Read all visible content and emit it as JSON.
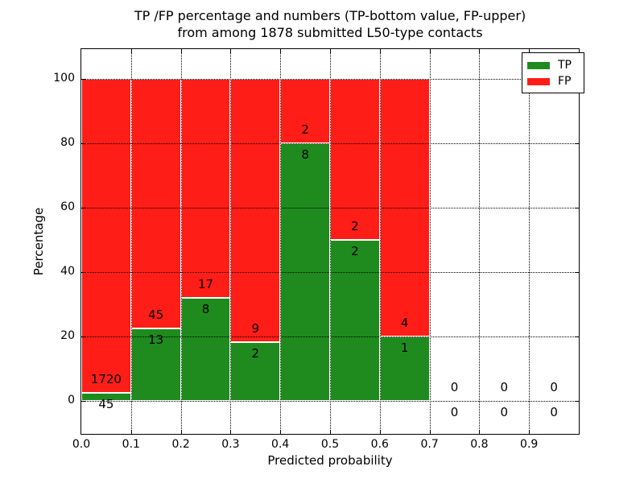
{
  "figure": {
    "title_line1": "TP /FP percentage and numbers (TP-bottom value, FP-upper)",
    "title_line2": "from among 1878 submitted L50-type contacts"
  },
  "chart_data": {
    "type": "bar",
    "stacked": true,
    "normalized_to_percent": true,
    "title": "TP /FP percentage and numbers (TP-bottom value, FP-upper) from among 1878 submitted L50-type contacts",
    "xlabel": "Predicted probability",
    "ylabel": "Percentage",
    "xlim": [
      0.0,
      1.0
    ],
    "ylim": [
      -10,
      110
    ],
    "bin_width": 0.1,
    "x_tick_labels": [
      "0.0",
      "0.1",
      "0.2",
      "0.3",
      "0.4",
      "0.5",
      "0.6",
      "0.7",
      "0.8",
      "0.9"
    ],
    "y_tick_values": [
      0,
      20,
      40,
      60,
      80,
      100
    ],
    "grid": true,
    "grid_style": "dotted",
    "legend_position": "upper right",
    "categories": [
      "0.0-0.1",
      "0.1-0.2",
      "0.2-0.3",
      "0.3-0.4",
      "0.4-0.5",
      "0.5-0.6",
      "0.6-0.7",
      "0.7-0.8",
      "0.8-0.9",
      "0.9-1.0"
    ],
    "series": [
      {
        "name": "TP",
        "color": "#1f8b1e",
        "counts": [
          45,
          13,
          8,
          2,
          8,
          2,
          1,
          0,
          0,
          0
        ]
      },
      {
        "name": "FP",
        "color": "#ff1d17",
        "counts": [
          1720,
          45,
          17,
          9,
          2,
          2,
          4,
          0,
          0,
          0
        ]
      }
    ],
    "tp_percent_by_bin": [
      2.55,
      22.41,
      32.0,
      18.18,
      80.0,
      50.0,
      20.0,
      0,
      0,
      0
    ],
    "total_contacts": 1878
  },
  "colors": {
    "tp": "#1f8b1e",
    "fp": "#ff1d17",
    "grid": "#000000",
    "background": "#ffffff"
  }
}
